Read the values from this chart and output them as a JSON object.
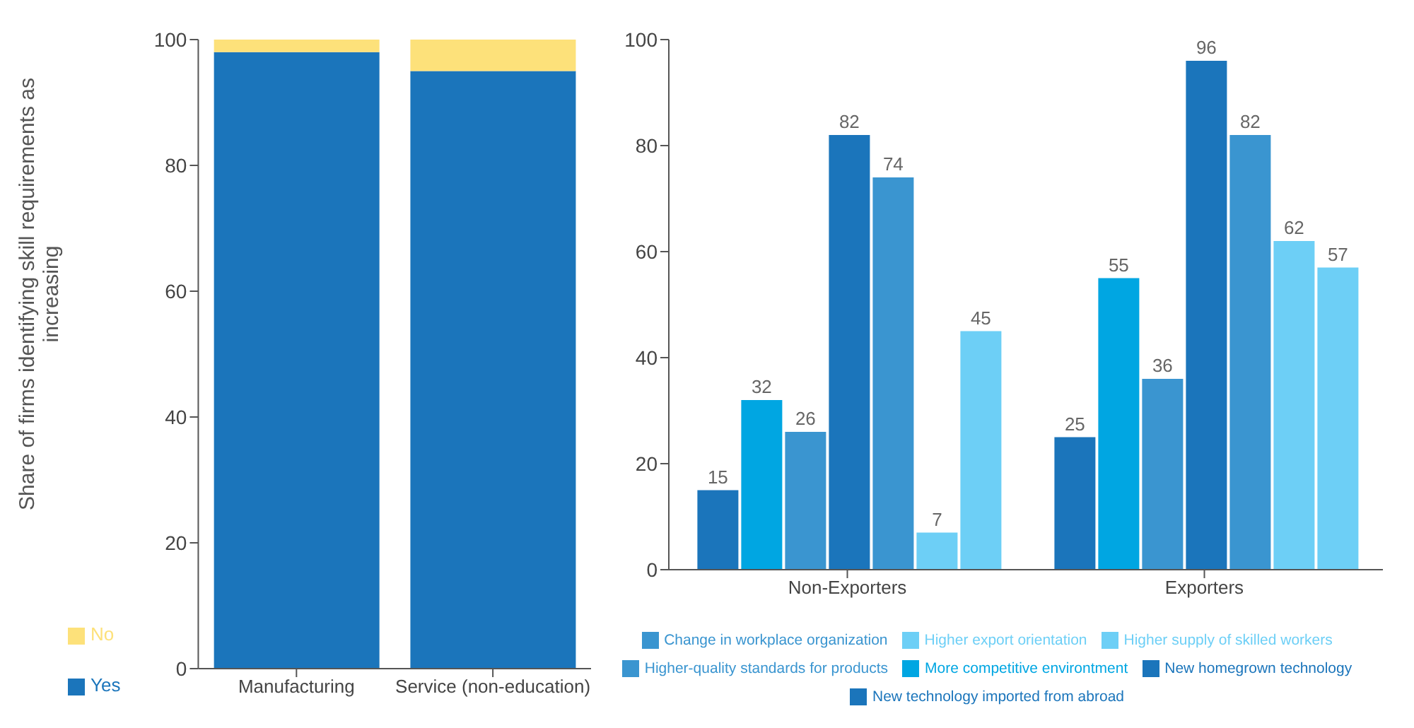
{
  "chart_data": [
    {
      "type": "bar",
      "ylabel": "Share of firms identifying skill requirements as increasing",
      "categories": [
        "Manufacturing",
        "Service (non-education)"
      ],
      "stacked": true,
      "ylim": [
        0,
        100
      ],
      "yticks": [
        0,
        20,
        40,
        60,
        80,
        100
      ],
      "legend": "bottom left",
      "series": [
        {
          "name": "Yes",
          "color": "#1b75bb",
          "values": [
            98,
            95
          ]
        },
        {
          "name": "No",
          "color": "#fde17a",
          "values": [
            2,
            5
          ]
        }
      ]
    },
    {
      "type": "bar",
      "categories": [
        "Non-Exporters",
        "Exporters"
      ],
      "ylim": [
        0,
        100
      ],
      "yticks": [
        0,
        20,
        40,
        60,
        80,
        100
      ],
      "data_labels": true,
      "legend": "bottom",
      "series": [
        {
          "name": "New technology imported from abroad",
          "color": "#1b75bb",
          "values": [
            15,
            25
          ]
        },
        {
          "name": "More competitive environtment",
          "color": "#00a6e2",
          "values": [
            32,
            55
          ]
        },
        {
          "name": "Change in workplace organization",
          "color": "#3a95d0",
          "values": [
            26,
            36
          ]
        },
        {
          "name": "New homegrown technology",
          "color": "#1b75bb",
          "values": [
            82,
            96
          ]
        },
        {
          "name": "Higher-quality standards for products",
          "color": "#3a95d0",
          "values": [
            74,
            82
          ]
        },
        {
          "name": "Higher supply of skilled workers",
          "color": "#6dcff6",
          "values": [
            7,
            62
          ]
        },
        {
          "name": "Higher export orientation",
          "color": "#6dcff6",
          "values": [
            45,
            57
          ]
        }
      ]
    }
  ]
}
